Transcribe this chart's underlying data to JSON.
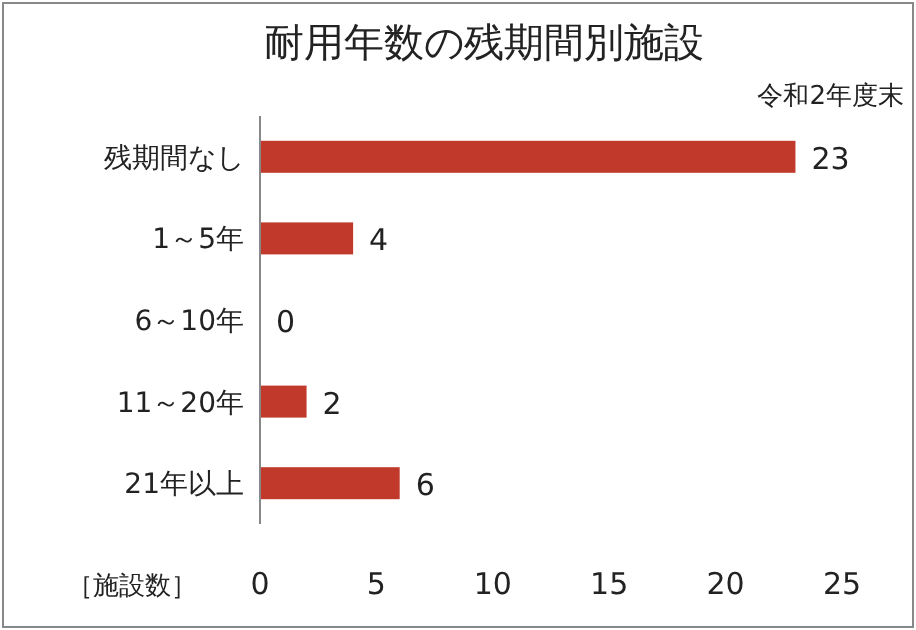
{
  "chart_data": {
    "type": "bar",
    "orientation": "horizontal",
    "title": "耐用年数の残期間別施設",
    "subtitle": "令和2年度末",
    "xlabel": "［施設数］",
    "categories": [
      "残期間なし",
      "1～5年",
      "6～10年",
      "11～20年",
      "21年以上"
    ],
    "values": [
      23,
      4,
      0,
      2,
      6
    ],
    "color": "#c0392b",
    "xlim": [
      0,
      25
    ],
    "xticks": [
      0,
      5,
      10,
      15,
      20,
      25
    ],
    "data_labels": true
  }
}
